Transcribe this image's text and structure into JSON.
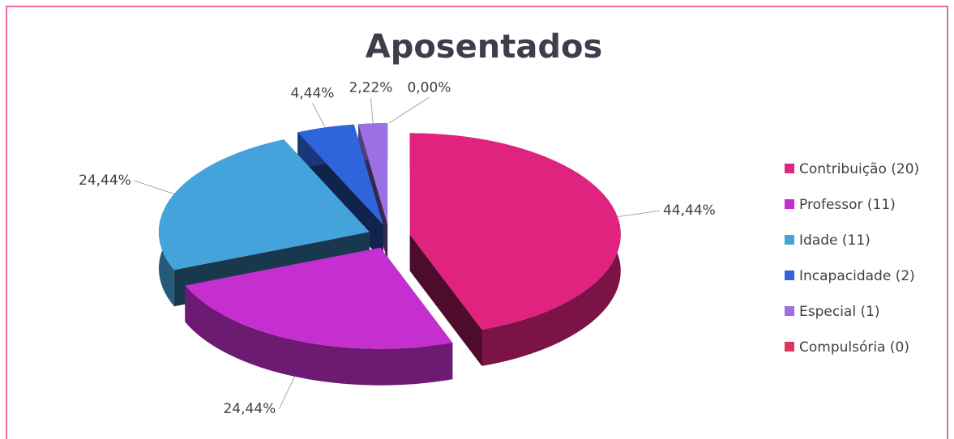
{
  "chart_data": {
    "type": "pie",
    "title": "Aposentados",
    "categories": [
      "Contribuição (20)",
      "Professor (11)",
      "Idade (11)",
      "Incapacidade (2)",
      "Especial (1)",
      "Compulsória (0)"
    ],
    "values": [
      44.44,
      24.44,
      24.44,
      4.44,
      2.22,
      0
    ],
    "value_labels": [
      "44,44%",
      "24,44%",
      "24,44%",
      "4,44%",
      "2,22%",
      "0,00%"
    ],
    "colors": [
      "#e0237f",
      "#c62fcf",
      "#45a3dc",
      "#2f64dc",
      "#9a70e2",
      "#d8385c"
    ],
    "legend": "right"
  }
}
